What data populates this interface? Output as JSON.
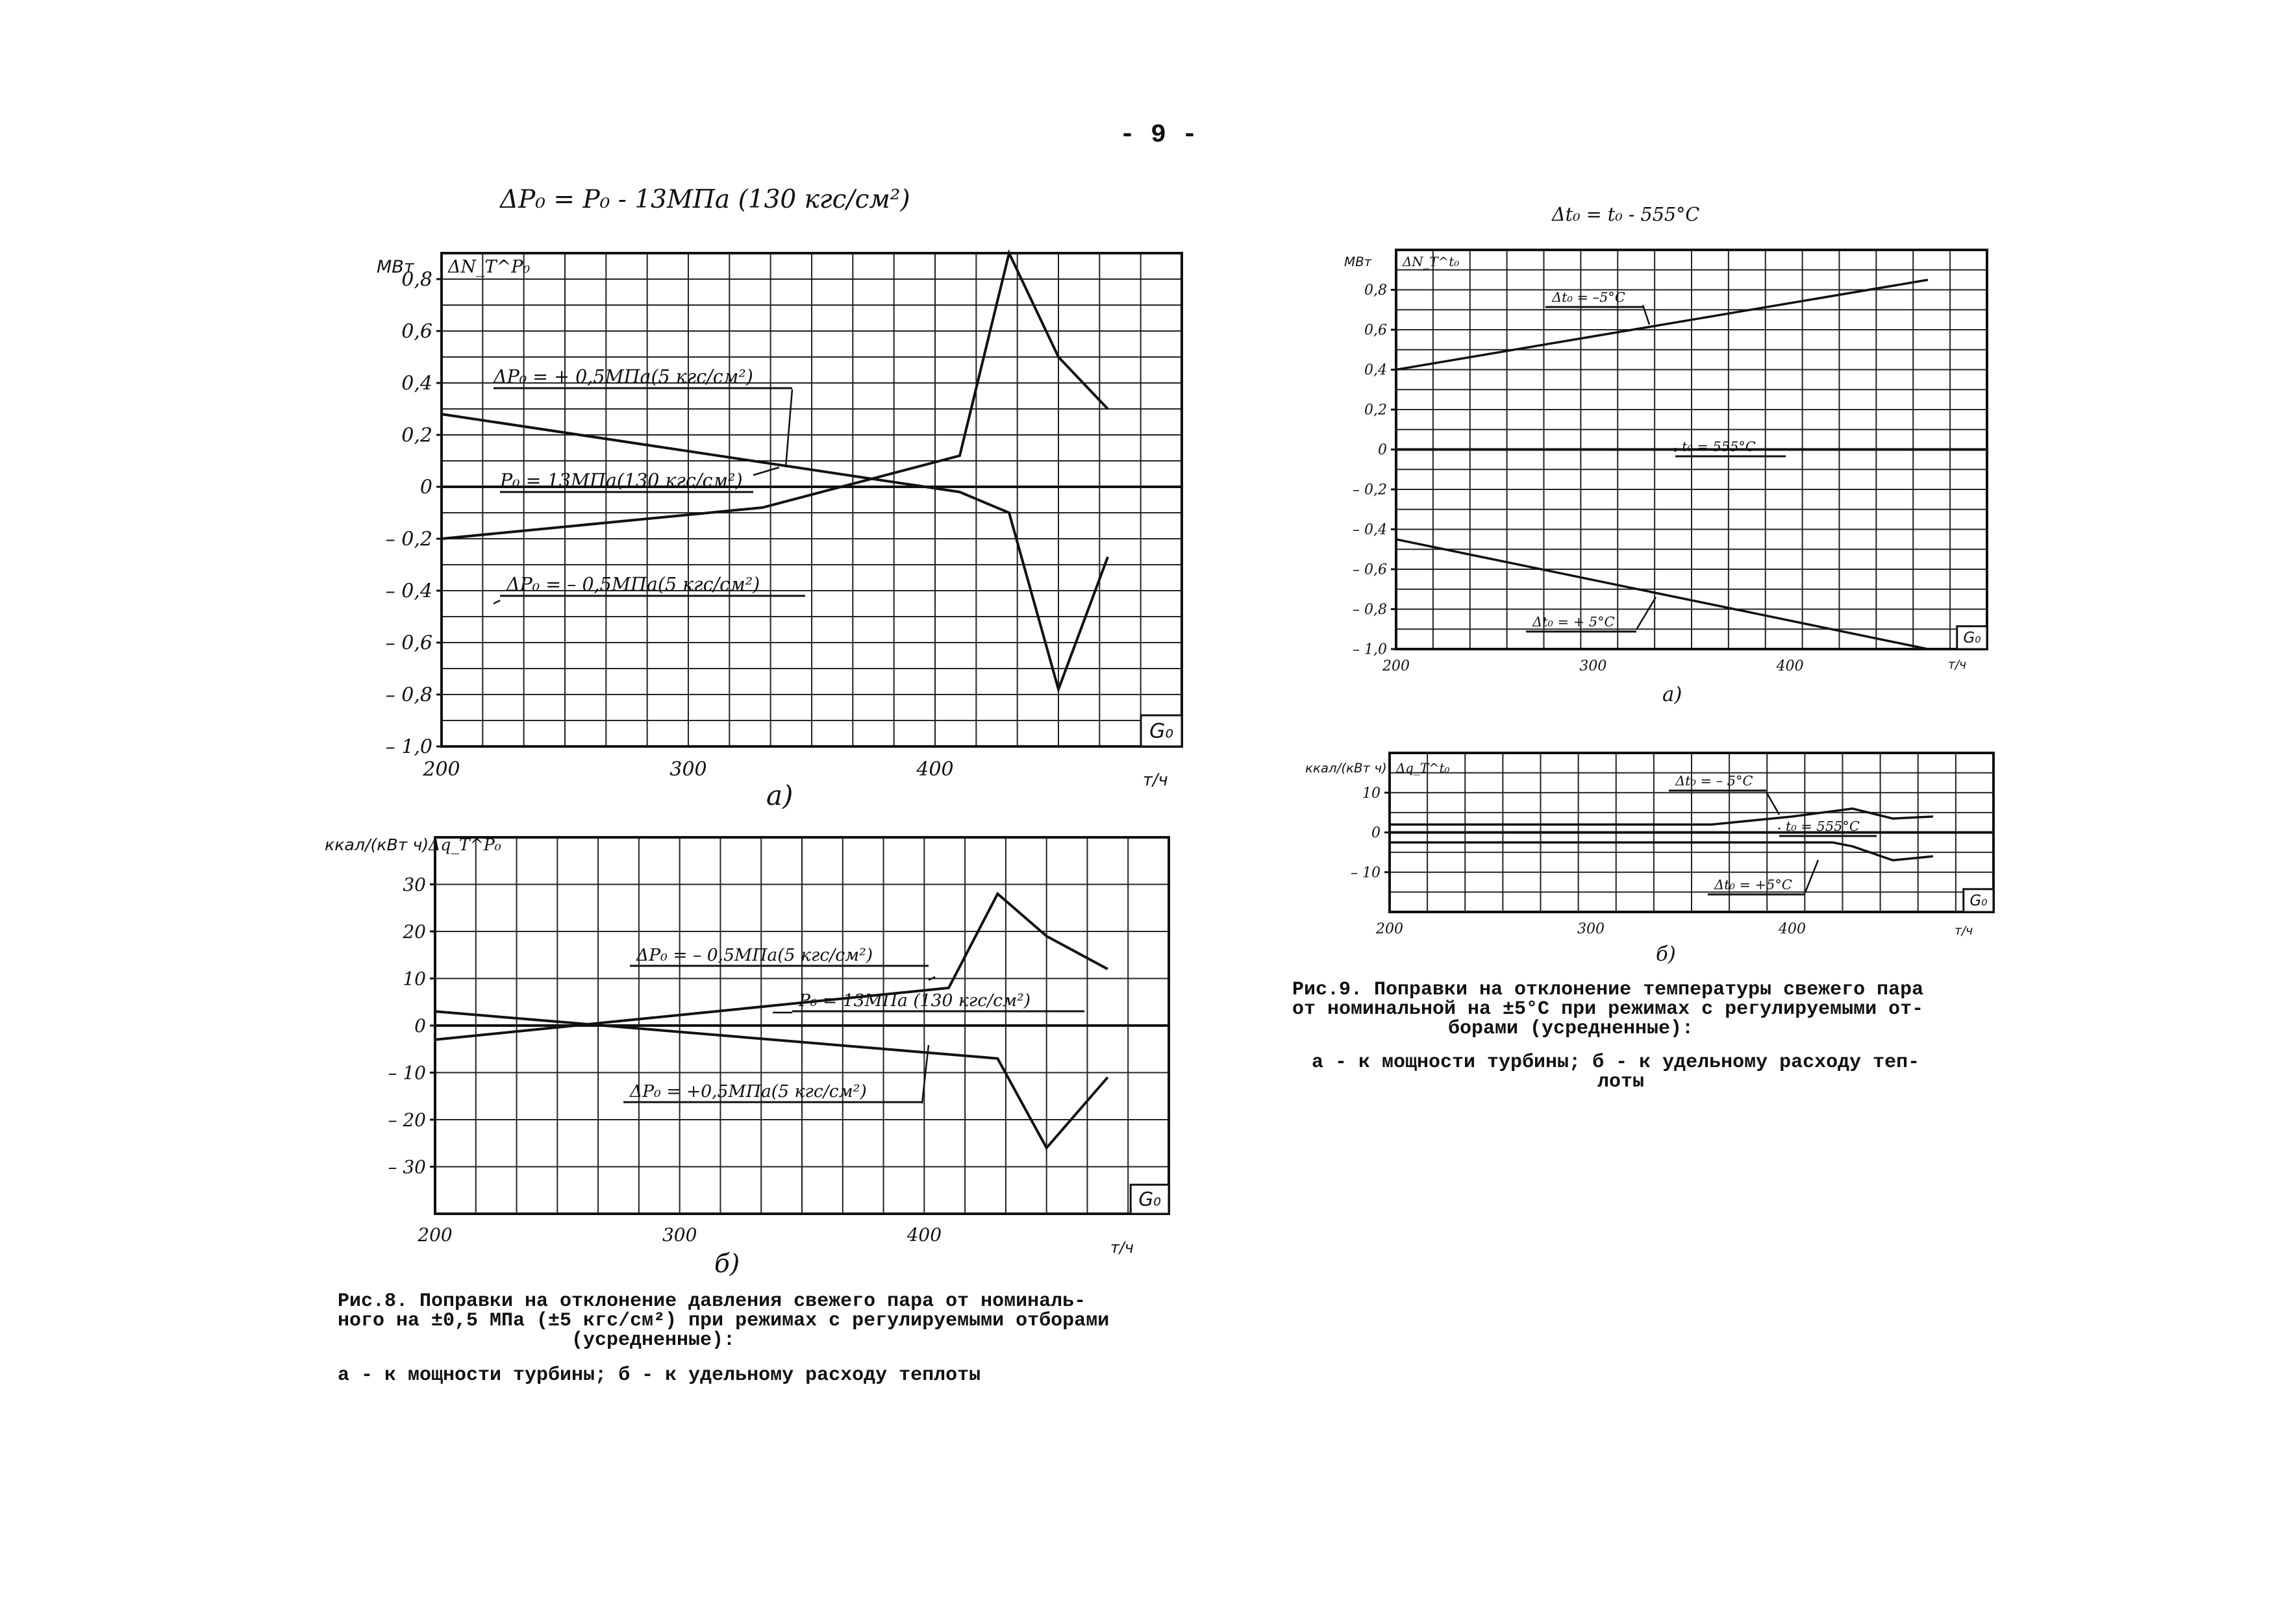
{
  "page_number": "- 9 -",
  "chart_data": [
    {
      "type": "line",
      "formula": "ΔP₀ = P₀ - 13МПа (130 кгс/см²)",
      "ylabel_unit": "МВт",
      "ylabel_symbol": "ΔN_T^P₀",
      "xlabel": "G₀",
      "x_unit": "т/ч",
      "letter": "a)",
      "xlim": [
        200,
        500
      ],
      "ylim": [
        -1.0,
        0.9
      ],
      "grid": true,
      "x_ticks": [
        "200",
        "300",
        "400"
      ],
      "y_ticks": [
        "0,8",
        "0,6",
        "0,4",
        "0,2",
        "0",
        "– 0,2",
        "– 0,4",
        "– 0,6",
        "– 0,8",
        "– 1,0"
      ],
      "y_tick_values": [
        0.8,
        0.6,
        0.4,
        0.2,
        0,
        -0.2,
        -0.4,
        -0.6,
        -0.8,
        -1.0
      ],
      "series": [
        {
          "name": "ΔP₀ = + 0,5МПа(5 кгс/см²)",
          "x": [
            200,
            330,
            410,
            430,
            450,
            470
          ],
          "y": [
            -0.2,
            -0.08,
            0.12,
            0.9,
            0.5,
            0.3
          ]
        },
        {
          "name": "P₀ = 13МПа(130 кгс/см²)",
          "x": [
            200,
            470
          ],
          "y": [
            0,
            0
          ]
        },
        {
          "name": "ΔP₀ = – 0,5МПа(5 кгс/см²)",
          "x": [
            200,
            410,
            430,
            450,
            470
          ],
          "y": [
            0.28,
            -0.02,
            -0.1,
            -0.78,
            -0.27
          ]
        }
      ]
    },
    {
      "type": "line",
      "ylabel_unit": "ккал/(кВт ч)",
      "ylabel_symbol": "Δq_T^P₀",
      "xlabel": "G₀",
      "x_unit": "т/ч",
      "letter": "б)",
      "xlim": [
        200,
        500
      ],
      "ylim": [
        -40,
        40
      ],
      "grid": true,
      "x_ticks": [
        "200",
        "300",
        "400"
      ],
      "y_ticks": [
        "30",
        "20",
        "10",
        "0",
        "– 10",
        "– 20",
        "– 30"
      ],
      "y_tick_values": [
        30,
        20,
        10,
        0,
        -10,
        -20,
        -30
      ],
      "series": [
        {
          "name": "ΔP₀ = – 0,5МПа(5 кгс/см²)",
          "x": [
            200,
            410,
            430,
            450,
            475
          ],
          "y": [
            -3,
            8,
            28,
            19,
            12
          ]
        },
        {
          "name": "P₀ = 13МПа (130 кгс/см²)",
          "x": [
            200,
            475
          ],
          "y": [
            0,
            0
          ]
        },
        {
          "name": "ΔP₀ = +0,5МПа(5 кгс/см²)",
          "x": [
            200,
            430,
            450,
            475
          ],
          "y": [
            3,
            -7,
            -26,
            -11
          ]
        }
      ]
    },
    {
      "type": "line",
      "formula": "Δt₀ = t₀ - 555°С",
      "ylabel_unit": "МВт",
      "ylabel_symbol": "ΔN_T^t₀",
      "xlabel": "G₀",
      "x_unit": "т/ч",
      "letter": "a)",
      "xlim": [
        200,
        500
      ],
      "ylim": [
        -1.0,
        1.0
      ],
      "grid": true,
      "x_ticks": [
        "200",
        "300",
        "400"
      ],
      "y_ticks": [
        "0,8",
        "0,6",
        "0,4",
        "0,2",
        "0",
        "– 0,2",
        "– 0,4",
        "– 0,6",
        "– 0,8",
        "– 1,0"
      ],
      "y_tick_values": [
        0.8,
        0.6,
        0.4,
        0.2,
        0,
        -0.2,
        -0.4,
        -0.6,
        -0.8,
        -1.0
      ],
      "series": [
        {
          "name": "Δt₀ = –5°С",
          "x": [
            200,
            470
          ],
          "y": [
            0.4,
            0.85
          ]
        },
        {
          "name": "t₀ = 555°С",
          "x": [
            200,
            470
          ],
          "y": [
            0,
            0
          ]
        },
        {
          "name": "Δt₀ = + 5°С",
          "x": [
            200,
            470
          ],
          "y": [
            -0.45,
            -1.0
          ]
        }
      ]
    },
    {
      "type": "line",
      "ylabel_unit": "ккал/(кВт ч)",
      "ylabel_symbol": "Δq_T^t₀",
      "xlabel": "G₀",
      "x_unit": "т/ч",
      "letter": "б)",
      "xlim": [
        200,
        500
      ],
      "ylim": [
        -20,
        20
      ],
      "grid": true,
      "x_ticks": [
        "200",
        "300",
        "400"
      ],
      "y_ticks": [
        "10",
        "0",
        "– 10"
      ],
      "y_tick_values": [
        10,
        0,
        -10
      ],
      "series": [
        {
          "name": "Δt₀ = – 5°С",
          "x": [
            200,
            360,
            400,
            430,
            450,
            470
          ],
          "y": [
            2,
            2,
            4,
            6,
            3.5,
            4
          ]
        },
        {
          "name": "t₀ = 555°С",
          "x": [
            200,
            470
          ],
          "y": [
            0,
            0
          ]
        },
        {
          "name": "Δt₀ = +5°С",
          "x": [
            200,
            420,
            430,
            450,
            470
          ],
          "y": [
            -2.5,
            -2.5,
            -3.5,
            -7,
            -6
          ]
        }
      ]
    }
  ],
  "captions": {
    "fig8_lines": [
      "Рис.8. Поправки на отклонение давления свежего пара от номиналь-",
      "ного на ±0,5 МПа (±5 кгс/см²) при режимах с регулируемыми отборами",
      "(усредненные):"
    ],
    "fig8_sub": "а - к мощности турбины; б - к удельному расходу теплоты",
    "fig9_lines": [
      "Рис.9. Поправки на отклонение температуры свежего пара",
      "от номинальной на ±5°С при режимах с регулируемыми от-",
      "борами (усредненные):"
    ],
    "fig9_sub_lines": [
      "а - к мощности турбины; б - к удельному расходу теп-",
      "лоты"
    ]
  }
}
